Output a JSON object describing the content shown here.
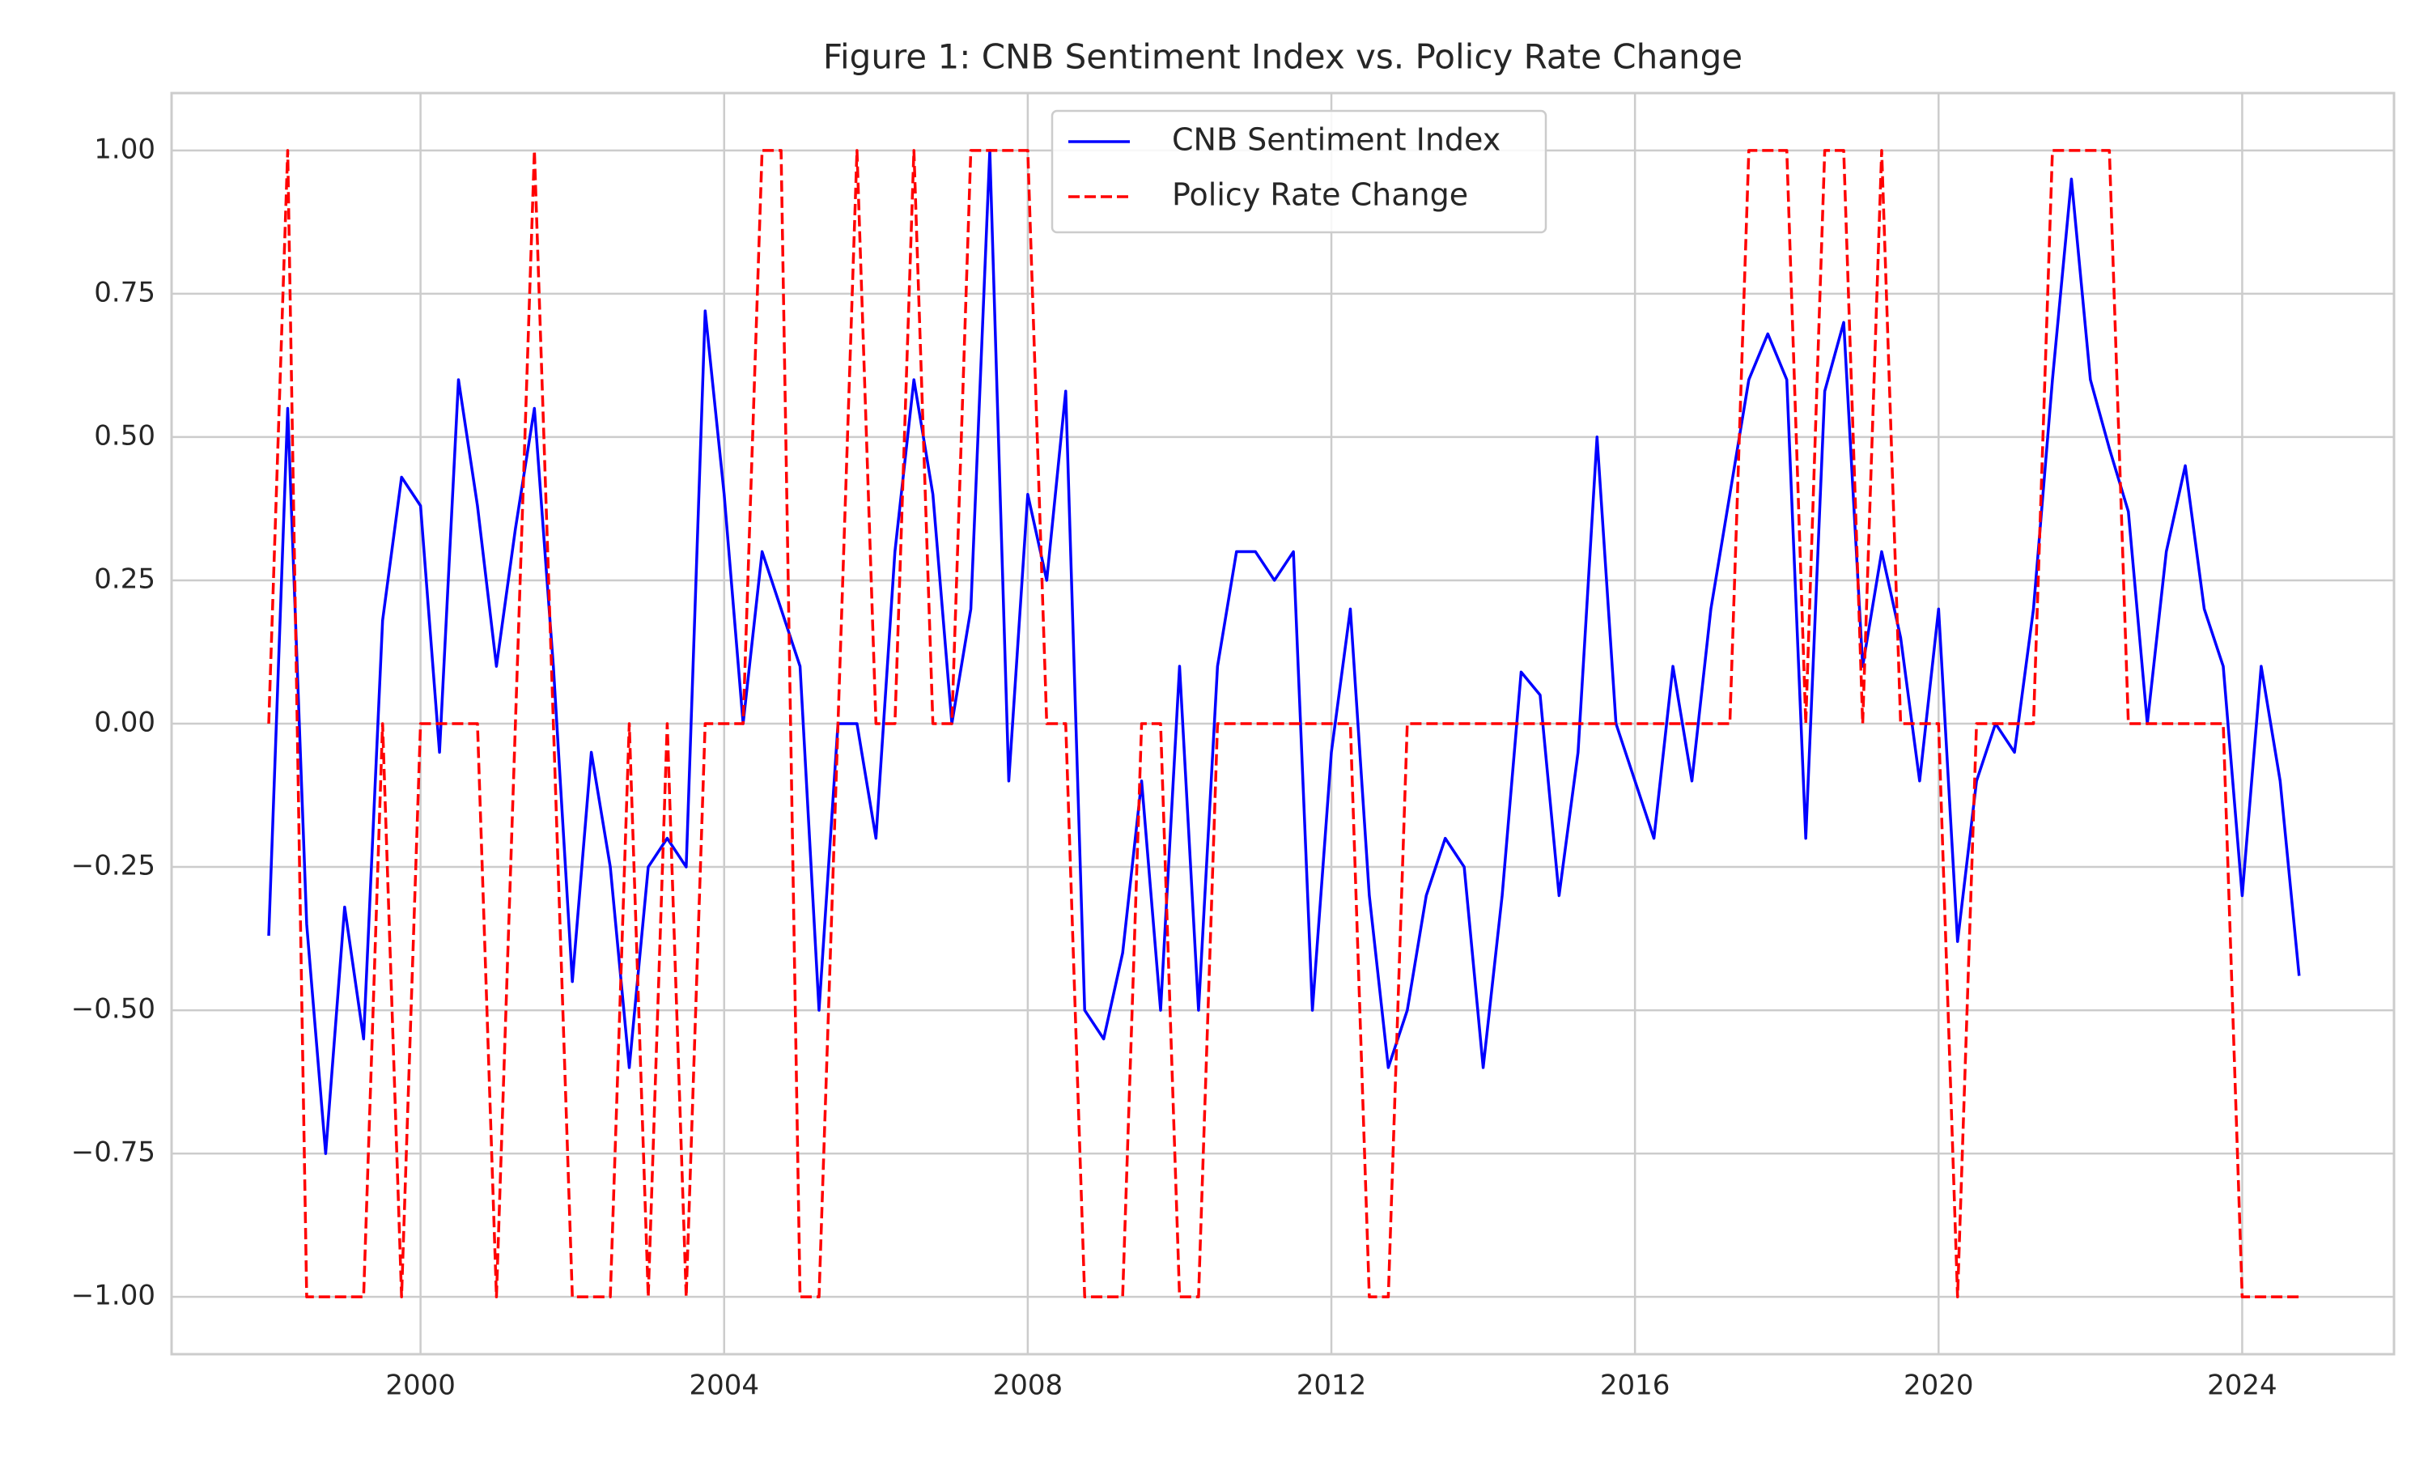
{
  "chart_data": {
    "type": "line",
    "title": "Figure 1: CNB Sentiment Index vs. Policy Rate Change",
    "x": [
      1998,
      1998.25,
      1998.5,
      1998.75,
      1999,
      1999.25,
      1999.5,
      1999.75,
      2000,
      2000.25,
      2000.5,
      2000.75,
      2001,
      2001.25,
      2001.5,
      2001.75,
      2002,
      2002.25,
      2002.5,
      2002.75,
      2003,
      2003.25,
      2003.5,
      2003.75,
      2004,
      2004.25,
      2004.5,
      2004.75,
      2005,
      2005.25,
      2005.5,
      2005.75,
      2006,
      2006.25,
      2006.5,
      2006.75,
      2007,
      2007.25,
      2007.5,
      2007.75,
      2008,
      2008.25,
      2008.5,
      2008.75,
      2009,
      2009.25,
      2009.5,
      2009.75,
      2010,
      2010.25,
      2010.5,
      2010.75,
      2011,
      2011.25,
      2011.5,
      2011.75,
      2012,
      2012.25,
      2012.5,
      2012.75,
      2013,
      2013.25,
      2013.5,
      2013.75,
      2014,
      2014.25,
      2014.5,
      2014.75,
      2015,
      2015.25,
      2015.5,
      2015.75,
      2016,
      2016.25,
      2016.5,
      2016.75,
      2017,
      2017.25,
      2017.5,
      2017.75,
      2018,
      2018.25,
      2018.5,
      2018.75,
      2019,
      2019.25,
      2019.5,
      2019.75,
      2020,
      2020.25,
      2020.5,
      2020.75,
      2021,
      2021.25,
      2021.5,
      2021.75,
      2022,
      2022.25,
      2022.5,
      2022.75,
      2023,
      2023.25,
      2023.5,
      2023.75,
      2024,
      2024.25,
      2024.5,
      2024.75
    ],
    "series": [
      {
        "name": "CNB Sentiment Index",
        "color": "#0000ff",
        "dashed": false,
        "values": [
          -0.37,
          0.55,
          -0.35,
          -0.75,
          -0.32,
          -0.55,
          0.18,
          0.43,
          0.38,
          -0.05,
          0.6,
          0.38,
          0.1,
          0.34,
          0.55,
          0.1,
          -0.45,
          -0.05,
          -0.25,
          -0.6,
          -0.25,
          -0.2,
          -0.25,
          0.72,
          0.4,
          0,
          0.3,
          0.2,
          0.1,
          -0.5,
          0,
          0,
          -0.2,
          0.3,
          0.6,
          0.4,
          0,
          0.2,
          1,
          -0.1,
          0.4,
          0.25,
          0.58,
          -0.5,
          -0.55,
          -0.4,
          -0.1,
          -0.5,
          0.1,
          -0.5,
          0.1,
          0.3,
          0.3,
          0.25,
          0.3,
          -0.5,
          -0.05,
          0.2,
          -0.3,
          -0.6,
          -0.5,
          -0.3,
          -0.2,
          -0.25,
          -0.6,
          -0.3,
          0.09,
          0.05,
          -0.3,
          -0.05,
          0.5,
          0,
          -0.1,
          -0.2,
          0.1,
          -0.1,
          0.2,
          0.4,
          0.6,
          0.68,
          0.6,
          -0.2,
          0.58,
          0.7,
          0.1,
          0.3,
          0.15,
          -0.1,
          0.2,
          -0.38,
          -0.1,
          0,
          -0.05,
          0.2,
          0.6,
          0.95,
          0.6,
          0.48,
          0.37,
          0,
          0.3,
          0.45,
          0.2,
          0.1,
          -0.3,
          0.1,
          -0.1,
          -0.44
        ]
      },
      {
        "name": "Policy Rate Change",
        "color": "#ff0000",
        "dashed": true,
        "values": [
          0,
          1,
          -1,
          -1,
          -1,
          -1,
          0,
          -1,
          0,
          0,
          0,
          0,
          -1,
          0,
          1,
          0,
          -1,
          -1,
          -1,
          0,
          -1,
          0,
          -1,
          0,
          0,
          0,
          1,
          1,
          -1,
          -1,
          0,
          1,
          0,
          0,
          1,
          0,
          0,
          1,
          1,
          1,
          1,
          0,
          0,
          -1,
          -1,
          -1,
          0,
          0,
          -1,
          -1,
          0,
          0,
          0,
          0,
          0,
          0,
          0,
          0,
          -1,
          -1,
          0,
          0,
          0,
          0,
          0,
          0,
          0,
          0,
          0,
          0,
          0,
          0,
          0,
          0,
          0,
          0,
          0,
          0,
          1,
          1,
          1,
          0,
          1,
          1,
          0,
          1,
          0,
          0,
          0,
          -1,
          0,
          0,
          0,
          0,
          1,
          1,
          1,
          1,
          0,
          0,
          0,
          0,
          0,
          0,
          -1,
          -1,
          -1,
          -1
        ]
      }
    ],
    "xlim": [
      1996.72,
      2026.0
    ],
    "xticks": [
      2000,
      2004,
      2008,
      2012,
      2016,
      2020,
      2024
    ],
    "ylim": [
      -1.1,
      1.1
    ],
    "yticks": [
      {
        "value": -1,
        "label": "−1.00"
      },
      {
        "value": -0.75,
        "label": "−0.75"
      },
      {
        "value": -0.5,
        "label": "−0.50"
      },
      {
        "value": -0.25,
        "label": "−0.25"
      },
      {
        "value": 0,
        "label": "0.00"
      },
      {
        "value": 0.25,
        "label": "0.25"
      },
      {
        "value": 0.5,
        "label": "0.50"
      },
      {
        "value": 0.75,
        "label": "0.75"
      },
      {
        "value": 1,
        "label": "1.00"
      }
    ],
    "grid": true,
    "legend": "upper center"
  }
}
